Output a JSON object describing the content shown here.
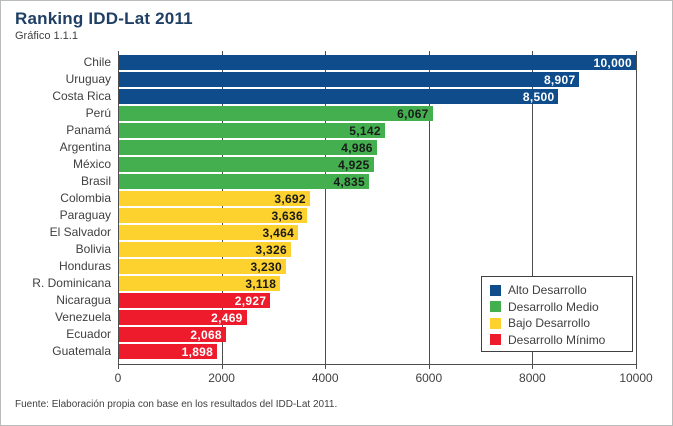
{
  "header": {
    "title": "Ranking IDD-Lat 2011",
    "subtitle": "Gráfico 1.1.1"
  },
  "footer": {
    "source": "Fuente: Elaboración propia con base en los resultados del IDD-Lat 2011."
  },
  "colors": {
    "alto": "#0f4c8c",
    "medio": "#43af4e",
    "bajo": "#fdd12e",
    "minimo": "#ed1b2b",
    "value_text": {
      "alto": "#ffffff",
      "medio": "#1a1a1a",
      "bajo": "#1a1a1a",
      "minimo": "#ffffff"
    },
    "title_text": "#1f4064",
    "axis": "#4d4d4d",
    "text": "#404040"
  },
  "chart_data": {
    "type": "bar",
    "orientation": "horizontal",
    "title": "Ranking IDD-Lat 2011",
    "subtitle": "Gráfico 1.1.1",
    "categories": [
      "Chile",
      "Uruguay",
      "Costa Rica",
      "Perú",
      "Panamá",
      "Argentina",
      "México",
      "Brasil",
      "Colombia",
      "Paraguay",
      "El Salvador",
      "Bolivia",
      "Honduras",
      "R. Dominicana",
      "Nicaragua",
      "Venezuela",
      "Ecuador",
      "Guatemala"
    ],
    "values": [
      10000,
      8907,
      8500,
      6067,
      5142,
      4986,
      4925,
      4835,
      3692,
      3636,
      3464,
      3326,
      3230,
      3118,
      2927,
      2469,
      2068,
      1898
    ],
    "value_labels": [
      "10,000",
      "8,907",
      "8,500",
      "6,067",
      "5,142",
      "4,986",
      "4,925",
      "4,835",
      "3,692",
      "3,636",
      "3,464",
      "3,326",
      "3,230",
      "3,118",
      "2,927",
      "2,469",
      "2,068",
      "1,898"
    ],
    "groups": [
      "alto",
      "alto",
      "alto",
      "medio",
      "medio",
      "medio",
      "medio",
      "medio",
      "bajo",
      "bajo",
      "bajo",
      "bajo",
      "bajo",
      "bajo",
      "minimo",
      "minimo",
      "minimo",
      "minimo"
    ],
    "xlim": [
      0,
      10000
    ],
    "x_ticks": [
      0,
      2000,
      4000,
      6000,
      8000,
      10000
    ],
    "x_tick_labels": [
      "0",
      "2000",
      "4000",
      "6000",
      "8000",
      "10000"
    ],
    "grid": "vertical-on",
    "legend": {
      "position": "inside-bottom-right",
      "entries": [
        {
          "label": "Alto Desarrollo",
          "group": "alto"
        },
        {
          "label": "Desarrollo Medio",
          "group": "medio"
        },
        {
          "label": "Bajo Desarrollo",
          "group": "bajo"
        },
        {
          "label": "Desarrollo Mínimo",
          "group": "minimo"
        }
      ]
    }
  }
}
